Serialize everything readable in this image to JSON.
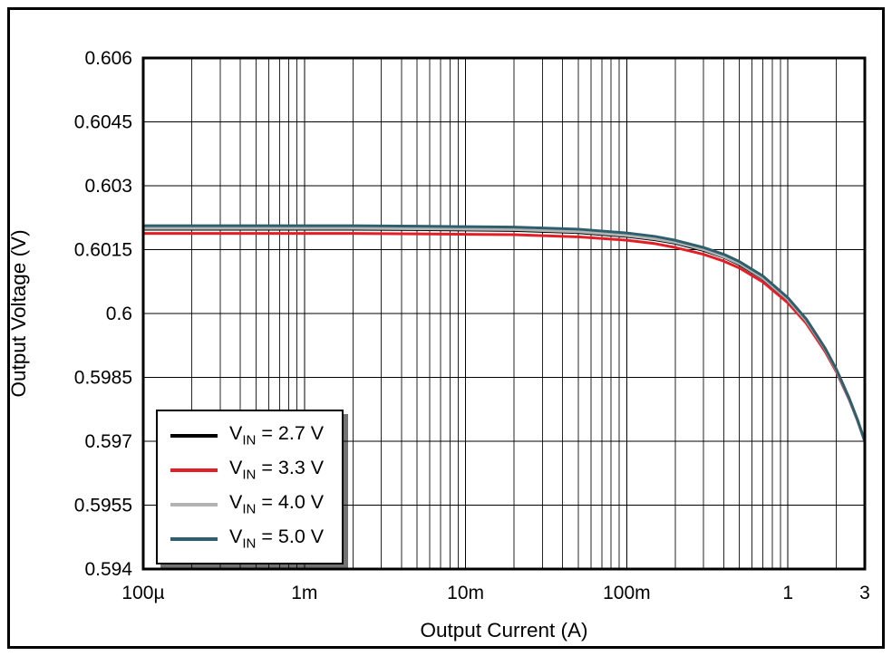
{
  "figure": {
    "background_color": "#ffffff",
    "frame_color": "#000000",
    "grid_color": "#000000"
  },
  "chart_data": {
    "type": "line",
    "title": "",
    "xlabel": "Output Current (A)",
    "ylabel": "Output Voltage (V)",
    "x_scale": "log",
    "xlim": [
      0.0001,
      3
    ],
    "ylim": [
      0.594,
      0.606
    ],
    "grid": {
      "x_major": true,
      "x_minor_log": true,
      "y_major": true,
      "y_minor": false
    },
    "legend_position": "lower left",
    "x_ticks": [
      {
        "value": 0.0001,
        "label": "100µ"
      },
      {
        "value": 0.001,
        "label": "1m"
      },
      {
        "value": 0.01,
        "label": "10m"
      },
      {
        "value": 0.1,
        "label": "100m"
      },
      {
        "value": 1,
        "label": "1"
      },
      {
        "value": 3,
        "label": "3"
      }
    ],
    "y_ticks": [
      {
        "value": 0.594,
        "label": "0.594"
      },
      {
        "value": 0.5955,
        "label": "0.5955"
      },
      {
        "value": 0.597,
        "label": "0.597"
      },
      {
        "value": 0.5985,
        "label": "0.5985"
      },
      {
        "value": 0.6,
        "label": "0.6"
      },
      {
        "value": 0.6015,
        "label": "0.6015"
      },
      {
        "value": 0.603,
        "label": "0.603"
      },
      {
        "value": 0.6045,
        "label": "0.6045"
      },
      {
        "value": 0.606,
        "label": "0.606"
      }
    ],
    "x": [
      0.0001,
      0.0002,
      0.0005,
      0.001,
      0.002,
      0.005,
      0.01,
      0.02,
      0.05,
      0.1,
      0.15,
      0.2,
      0.3,
      0.4,
      0.5,
      0.7,
      1.0,
      1.3,
      1.7,
      2.0,
      2.4,
      2.7,
      3.0
    ],
    "series": [
      {
        "name": "VIN = 2.7 V",
        "label_parts": [
          {
            "t": "V"
          },
          {
            "sub": "IN"
          },
          {
            "t": " = 2.7 V"
          }
        ],
        "color": "#000000",
        "values": [
          0.60198,
          0.60198,
          0.60198,
          0.60198,
          0.60198,
          0.60197,
          0.60196,
          0.60195,
          0.6019,
          0.60181,
          0.60173,
          0.60165,
          0.60148,
          0.60132,
          0.60115,
          0.60082,
          0.60032,
          0.59982,
          0.59916,
          0.59866,
          0.598,
          0.5975,
          0.597
        ]
      },
      {
        "name": "VIN = 3.3 V",
        "label_parts": [
          {
            "t": "V"
          },
          {
            "sub": "IN"
          },
          {
            "t": " = 3.3 V"
          }
        ],
        "color": "#e41e26",
        "values": [
          0.60188,
          0.60188,
          0.60188,
          0.60188,
          0.60188,
          0.60187,
          0.60186,
          0.60185,
          0.6018,
          0.60172,
          0.60164,
          0.60155,
          0.60139,
          0.60123,
          0.60107,
          0.60074,
          0.60025,
          0.59977,
          0.59911,
          0.59863,
          0.59798,
          0.59749,
          0.597
        ]
      },
      {
        "name": "VIN = 4.0 V",
        "label_parts": [
          {
            "t": "V"
          },
          {
            "sub": "IN"
          },
          {
            "t": " = 4.0 V"
          }
        ],
        "color": "#b3b3b3",
        "values": [
          0.602,
          0.602,
          0.602,
          0.602,
          0.602,
          0.60199,
          0.60198,
          0.60197,
          0.60192,
          0.60183,
          0.60175,
          0.60167,
          0.6015,
          0.60133,
          0.60117,
          0.60083,
          0.60033,
          0.59983,
          0.59917,
          0.59867,
          0.598,
          0.5975,
          0.597
        ]
      },
      {
        "name": "VIN = 5.0 V",
        "label_parts": [
          {
            "t": "V"
          },
          {
            "sub": "IN"
          },
          {
            "t": " = 5.0 V"
          }
        ],
        "color": "#2d5f6d",
        "values": [
          0.60206,
          0.60206,
          0.60206,
          0.60206,
          0.60206,
          0.60205,
          0.60204,
          0.60203,
          0.60198,
          0.60189,
          0.60181,
          0.60172,
          0.60155,
          0.60139,
          0.60122,
          0.60088,
          0.60037,
          0.59987,
          0.59919,
          0.59869,
          0.59801,
          0.59751,
          0.597
        ]
      }
    ]
  }
}
